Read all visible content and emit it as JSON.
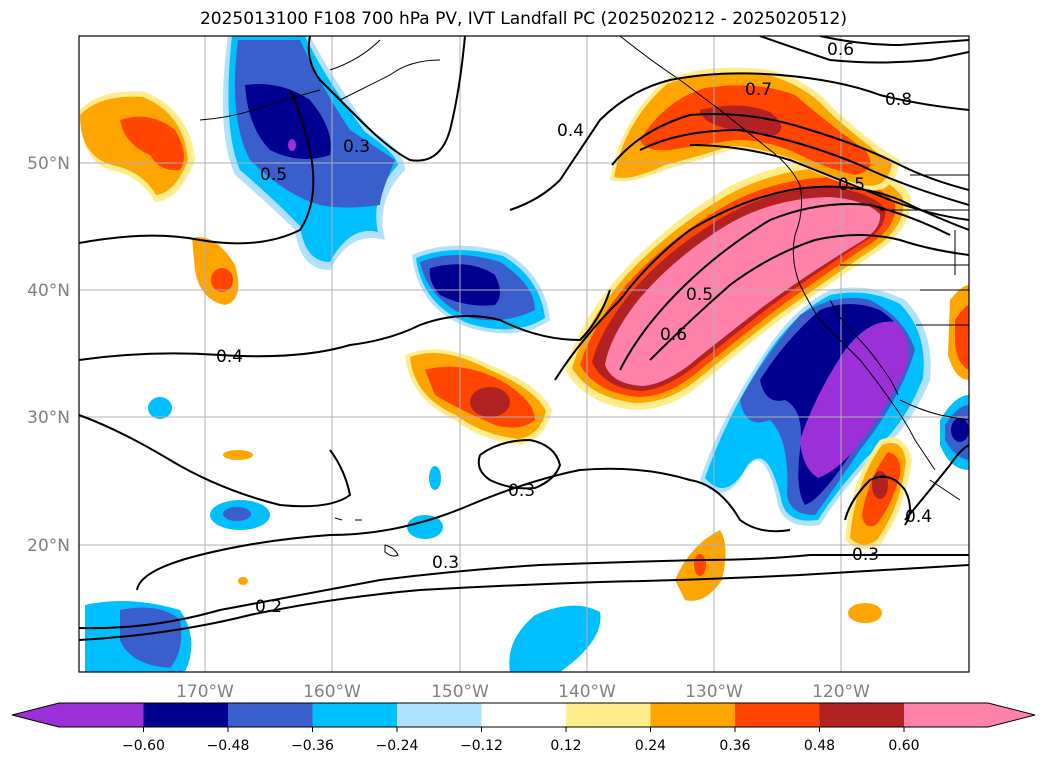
{
  "title": "2025013100 F108 700 hPa PV, IVT Landfall PC (2025020212 - 2025020512)",
  "map": {
    "lon_range": [
      180,
      110
    ],
    "lat_range": [
      10,
      60
    ],
    "lat_ticks": [
      {
        "value": 20,
        "label": "20°N"
      },
      {
        "value": 30,
        "label": "30°N"
      },
      {
        "value": 40,
        "label": "40°N"
      },
      {
        "value": 50,
        "label": "50°N"
      }
    ],
    "lon_ticks": [
      {
        "value": 170,
        "label": "170°W"
      },
      {
        "value": 160,
        "label": "160°W"
      },
      {
        "value": 150,
        "label": "150°W"
      },
      {
        "value": 140,
        "label": "140°W"
      },
      {
        "value": 130,
        "label": "130°W"
      },
      {
        "value": 120,
        "label": "120°W"
      }
    ],
    "contour_labels": [
      "0.2",
      "0.3",
      "0.3",
      "0.3",
      "0.3",
      "0.4",
      "0.4",
      "0.4",
      "0.5",
      "0.5",
      "0.5",
      "0.6",
      "0.6",
      "0.7",
      "0.8"
    ]
  },
  "colorbar": {
    "colors": [
      "#9b30d8",
      "#000090",
      "#3a5fcd",
      "#00bfff",
      "#b0e2ff",
      "#ffffff",
      "#ffec8b",
      "#ffa500",
      "#ff4500",
      "#b22222",
      "#ff82ab",
      "#ff82ab"
    ],
    "tick_labels": [
      "−0.60",
      "−0.48",
      "−0.36",
      "−0.24",
      "−0.12",
      "0.12",
      "0.24",
      "0.36",
      "0.48",
      "0.60"
    ]
  },
  "colors": {
    "purple": "#9b30d8",
    "navy": "#000090",
    "royal": "#3a5fcd",
    "sky": "#00bfff",
    "pale_blue": "#b0e2ff",
    "pale_yellow": "#ffec8b",
    "orange": "#ffa500",
    "red_orange": "#ff4500",
    "firebrick": "#b22222",
    "pink": "#ff82ab"
  }
}
